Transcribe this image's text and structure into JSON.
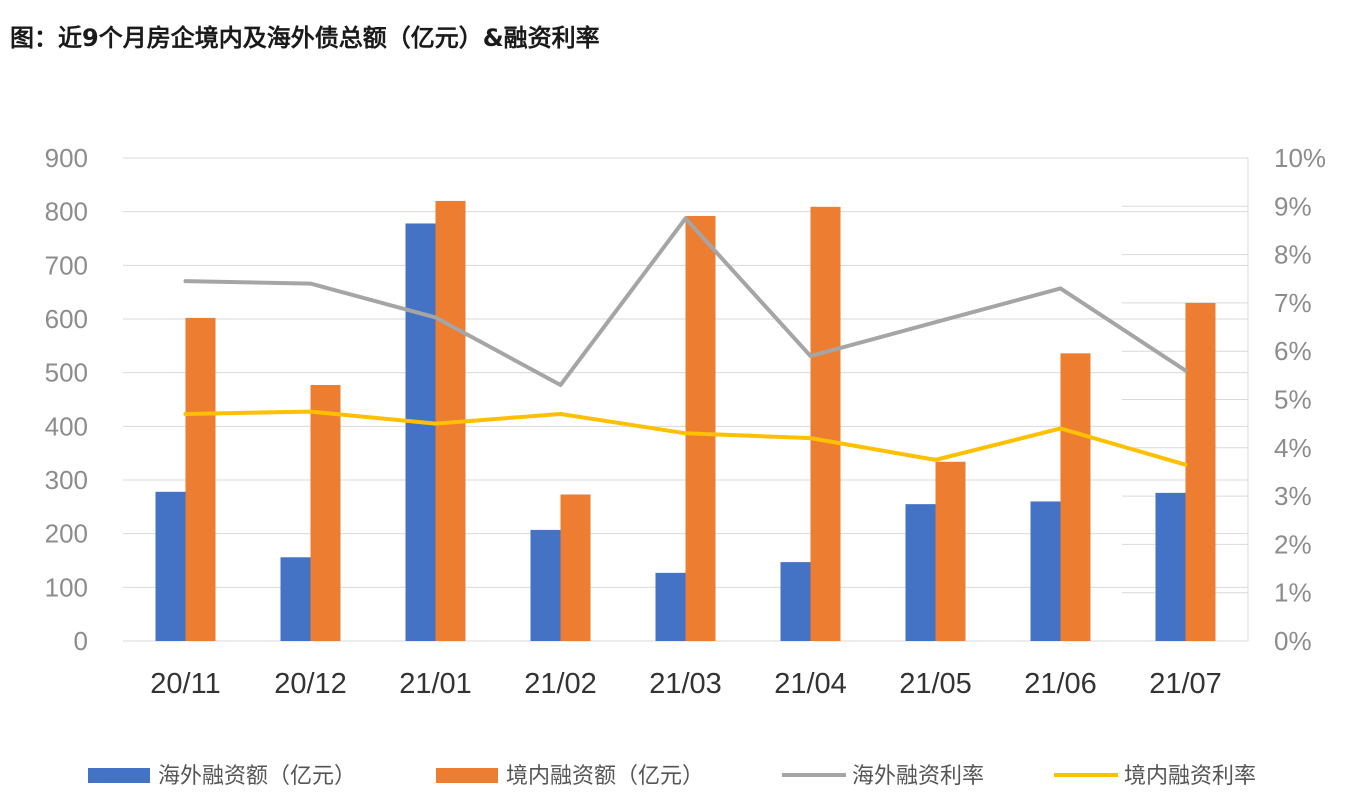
{
  "title": "图：近9个月房企境内及海外债总额（亿元）&融资利率",
  "chart_data": {
    "type": "bar",
    "categories": [
      "20/11",
      "20/12",
      "21/01",
      "21/02",
      "21/03",
      "21/04",
      "21/05",
      "21/06",
      "21/07"
    ],
    "series": [
      {
        "name": "海外融资额（亿元）",
        "type": "bar",
        "axis": "left",
        "color": "#4472C4",
        "values": [
          278,
          156,
          778,
          207,
          127,
          147,
          255,
          260,
          276
        ]
      },
      {
        "name": "境内融资额（亿元）",
        "type": "bar",
        "axis": "left",
        "color": "#ED7D31",
        "values": [
          602,
          477,
          820,
          273,
          792,
          809,
          334,
          536,
          630
        ]
      },
      {
        "name": "海外融资利率",
        "type": "line",
        "axis": "right",
        "color": "#A5A5A5",
        "values": [
          7.45,
          7.4,
          6.7,
          5.3,
          8.75,
          5.9,
          6.6,
          7.3,
          5.6
        ]
      },
      {
        "name": "境内融资利率",
        "type": "line",
        "axis": "right",
        "color": "#FFC000",
        "values": [
          4.7,
          4.75,
          4.5,
          4.7,
          4.3,
          4.2,
          3.75,
          4.4,
          3.65
        ]
      }
    ],
    "y_left": {
      "ylim": [
        0,
        900
      ],
      "ticks": [
        "0",
        "100",
        "200",
        "300",
        "400",
        "500",
        "600",
        "700",
        "800",
        "900"
      ]
    },
    "y_right": {
      "ylim": [
        0,
        10
      ],
      "ticks": [
        "0%",
        "1%",
        "2%",
        "3%",
        "4%",
        "5%",
        "6%",
        "7%",
        "8%",
        "9%",
        "10%"
      ]
    },
    "grid": true,
    "legend": "bottom"
  }
}
